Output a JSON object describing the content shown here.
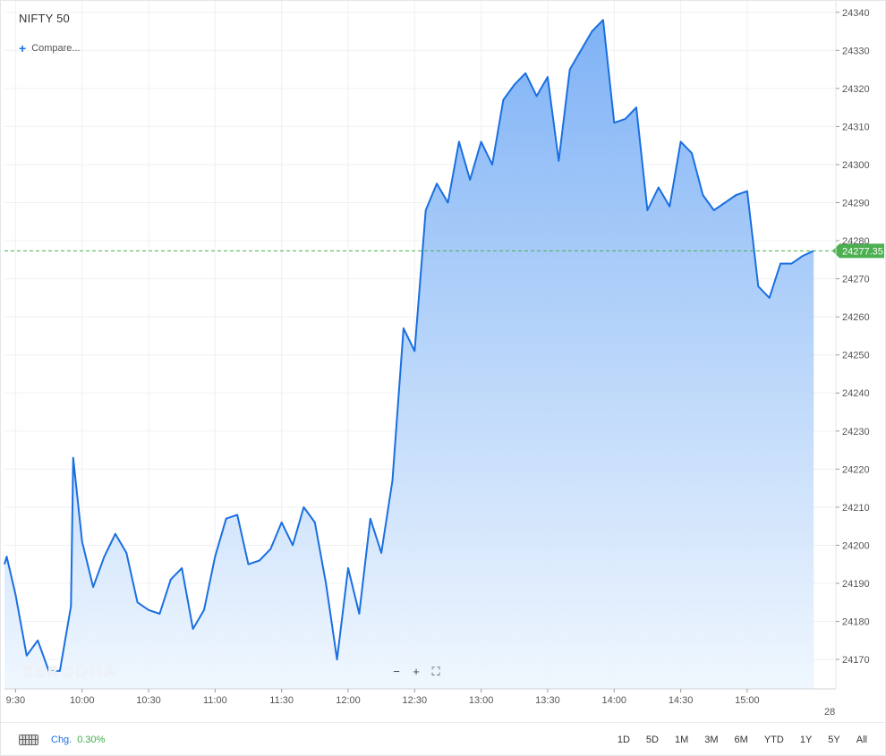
{
  "header": {
    "symbol": "NIFTY 50",
    "compare_label": "Compare..."
  },
  "watermark": "ZERODHA",
  "zoom": {
    "minus": "−",
    "plus": "+",
    "fullscreen": "⛶"
  },
  "footer": {
    "chg_label": "Chg.",
    "chg_value": "0.30%",
    "ranges": [
      "1D",
      "5D",
      "1M",
      "3M",
      "6M",
      "YTD",
      "1Y",
      "5Y",
      "All"
    ]
  },
  "colors": {
    "line": "#1a6fe0",
    "fill_top": "#78aef5",
    "fill_bottom": "#eef6fe",
    "current_price": "#4caf50",
    "grid": "#eef0f3"
  },
  "chart_data": {
    "type": "area",
    "series": [
      {
        "values": [
          [
            "9:25",
            24195
          ],
          [
            "9:26",
            24197
          ],
          [
            "9:30",
            24187
          ],
          [
            "9:35",
            24171
          ],
          [
            "9:40",
            24175
          ],
          [
            "9:45",
            24167
          ],
          [
            "9:50",
            24167
          ],
          [
            "9:55",
            24184
          ],
          [
            "9:56",
            24223
          ],
          [
            "10:00",
            24201
          ],
          [
            "10:05",
            24189
          ],
          [
            "10:10",
            24197
          ],
          [
            "10:15",
            24203
          ],
          [
            "10:20",
            24198
          ],
          [
            "10:25",
            24185
          ],
          [
            "10:30",
            24183
          ],
          [
            "10:35",
            24182
          ],
          [
            "10:40",
            24191
          ],
          [
            "10:45",
            24194
          ],
          [
            "10:50",
            24178
          ],
          [
            "10:55",
            24183
          ],
          [
            "11:00",
            24197
          ],
          [
            "11:05",
            24207
          ],
          [
            "11:10",
            24208
          ],
          [
            "11:15",
            24195
          ],
          [
            "11:20",
            24196
          ],
          [
            "11:25",
            24199
          ],
          [
            "11:30",
            24206
          ],
          [
            "11:35",
            24200
          ],
          [
            "11:40",
            24210
          ],
          [
            "11:45",
            24206
          ],
          [
            "11:50",
            24190
          ],
          [
            "11:55",
            24170
          ],
          [
            "12:00",
            24194
          ],
          [
            "12:05",
            24182
          ],
          [
            "12:10",
            24207
          ],
          [
            "12:15",
            24198
          ],
          [
            "12:20",
            24217
          ],
          [
            "12:25",
            24257
          ],
          [
            "12:30",
            24251
          ],
          [
            "12:35",
            24288
          ],
          [
            "12:40",
            24295
          ],
          [
            "12:45",
            24290
          ],
          [
            "12:50",
            24306
          ],
          [
            "12:55",
            24296
          ],
          [
            "13:00",
            24306
          ],
          [
            "13:05",
            24300
          ],
          [
            "13:10",
            24317
          ],
          [
            "13:15",
            24321
          ],
          [
            "13:20",
            24324
          ],
          [
            "13:25",
            24318
          ],
          [
            "13:30",
            24323
          ],
          [
            "13:35",
            24301
          ],
          [
            "13:40",
            24325
          ],
          [
            "13:45",
            24330
          ],
          [
            "13:50",
            24335
          ],
          [
            "13:55",
            24338
          ],
          [
            "14:00",
            24311
          ],
          [
            "14:05",
            24312
          ],
          [
            "14:10",
            24315
          ],
          [
            "14:15",
            24288
          ],
          [
            "14:20",
            24294
          ],
          [
            "14:25",
            24289
          ],
          [
            "14:30",
            24306
          ],
          [
            "14:35",
            24303
          ],
          [
            "14:40",
            24292
          ],
          [
            "14:45",
            24288
          ],
          [
            "14:50",
            24290
          ],
          [
            "14:55",
            24292
          ],
          [
            "15:00",
            24293
          ],
          [
            "15:05",
            24268
          ],
          [
            "15:10",
            24265
          ],
          [
            "15:15",
            24274
          ],
          [
            "15:20",
            24274
          ],
          [
            "15:25",
            24276
          ],
          [
            "15:30",
            24277.35
          ]
        ]
      }
    ],
    "x_ticks": [
      "9:30",
      "10:00",
      "10:30",
      "11:00",
      "11:30",
      "12:00",
      "12:30",
      "13:00",
      "13:30",
      "14:00",
      "14:30",
      "15:00"
    ],
    "x_overflow_label": "28",
    "y_ticks": [
      24170,
      24180,
      24190,
      24200,
      24210,
      24220,
      24230,
      24240,
      24250,
      24260,
      24270,
      24280,
      24290,
      24300,
      24310,
      24320,
      24330,
      24340
    ],
    "ylim": [
      24162.5,
      24343
    ],
    "xlim": [
      "9:25",
      "15:40"
    ],
    "current_price": 24277.35,
    "current_price_label": "24277.35",
    "grid": true
  }
}
